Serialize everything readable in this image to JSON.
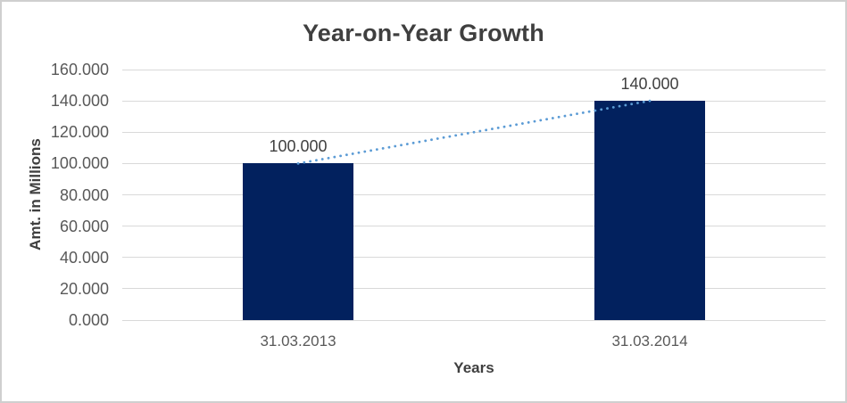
{
  "chart_data": {
    "type": "bar",
    "title": "Year-on-Year Growth",
    "categories": [
      "31.03.2013",
      "31.03.2014"
    ],
    "values": [
      100,
      140
    ],
    "data_labels": [
      "100.000",
      "140.000"
    ],
    "xlabel": "Years",
    "ylabel": "Amt. in Millions",
    "ylim": [
      0,
      160
    ],
    "ytick_interval": 20,
    "ytick_labels": [
      "0.000",
      "20.000",
      "40.000",
      "60.000",
      "80.000",
      "100.000",
      "120.000",
      "140.000",
      "160.000"
    ],
    "grid": true,
    "legend": "none",
    "bar_color": "#02215e",
    "gridline_color": "#d9d9d9",
    "trendline": {
      "style": "dotted",
      "color": "#5b9bd5",
      "from_value": 100,
      "to_value": 140
    },
    "text_colors": {
      "title": "#3f3f3f",
      "axis_ticks": "#595959",
      "axis_titles": "#3f3f3f",
      "data_labels": "#404040"
    }
  }
}
